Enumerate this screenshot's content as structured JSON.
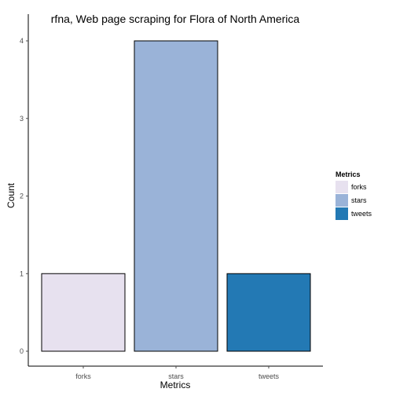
{
  "chart_data": {
    "type": "bar",
    "title": "rfna, Web page scraping for Flora of North America",
    "xlabel": "Metrics",
    "ylabel": "Count",
    "categories": [
      "forks",
      "stars",
      "tweets"
    ],
    "values": [
      1,
      4,
      1
    ],
    "colors": [
      "#e7e1ef",
      "#9ab3d8",
      "#2379b4"
    ],
    "ylim": [
      0,
      4
    ],
    "yticks": [
      0,
      1,
      2,
      3,
      4
    ],
    "grid": false,
    "legend": {
      "title": "Metrics",
      "position": "right",
      "entries": [
        "forks",
        "stars",
        "tweets"
      ]
    }
  }
}
